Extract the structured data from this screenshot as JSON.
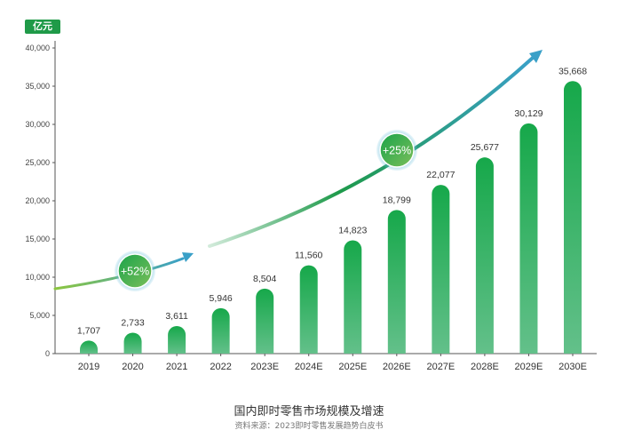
{
  "unit_label": "亿元",
  "caption": {
    "title": "国内即时零售市场规模及增速",
    "source": "资料来源：2023即时零售发展趋势白皮书"
  },
  "colors": {
    "bar_top": "#16a84a",
    "bar_bottom": "#63c08a",
    "arrow": "#3aa0c8",
    "badge": "#1f9a48"
  },
  "chart_data": {
    "type": "bar",
    "categories": [
      "2019",
      "2020",
      "2021",
      "2022",
      "2023E",
      "2024E",
      "2025E",
      "2026E",
      "2027E",
      "2028E",
      "2029E",
      "2030E"
    ],
    "values": [
      1707,
      2733,
      3611,
      5946,
      8504,
      11560,
      14823,
      18799,
      22077,
      25677,
      30129,
      35668
    ],
    "data_labels": [
      "1,707",
      "2,733",
      "3,611",
      "5,946",
      "8,504",
      "11,560",
      "14,823",
      "18,799",
      "22,077",
      "25,677",
      "30,129",
      "35,668"
    ],
    "ylim": [
      0,
      40000
    ],
    "yticks": [
      0,
      5000,
      10000,
      15000,
      20000,
      25000,
      30000,
      35000,
      40000
    ],
    "ytick_labels": [
      "0",
      "5,000",
      "10,000",
      "15,000",
      "20,000",
      "25,000",
      "30,000",
      "35,000",
      "40,000"
    ],
    "growth_annotations": [
      "+52%",
      "+25%"
    ],
    "grid": false,
    "legend": "none"
  }
}
